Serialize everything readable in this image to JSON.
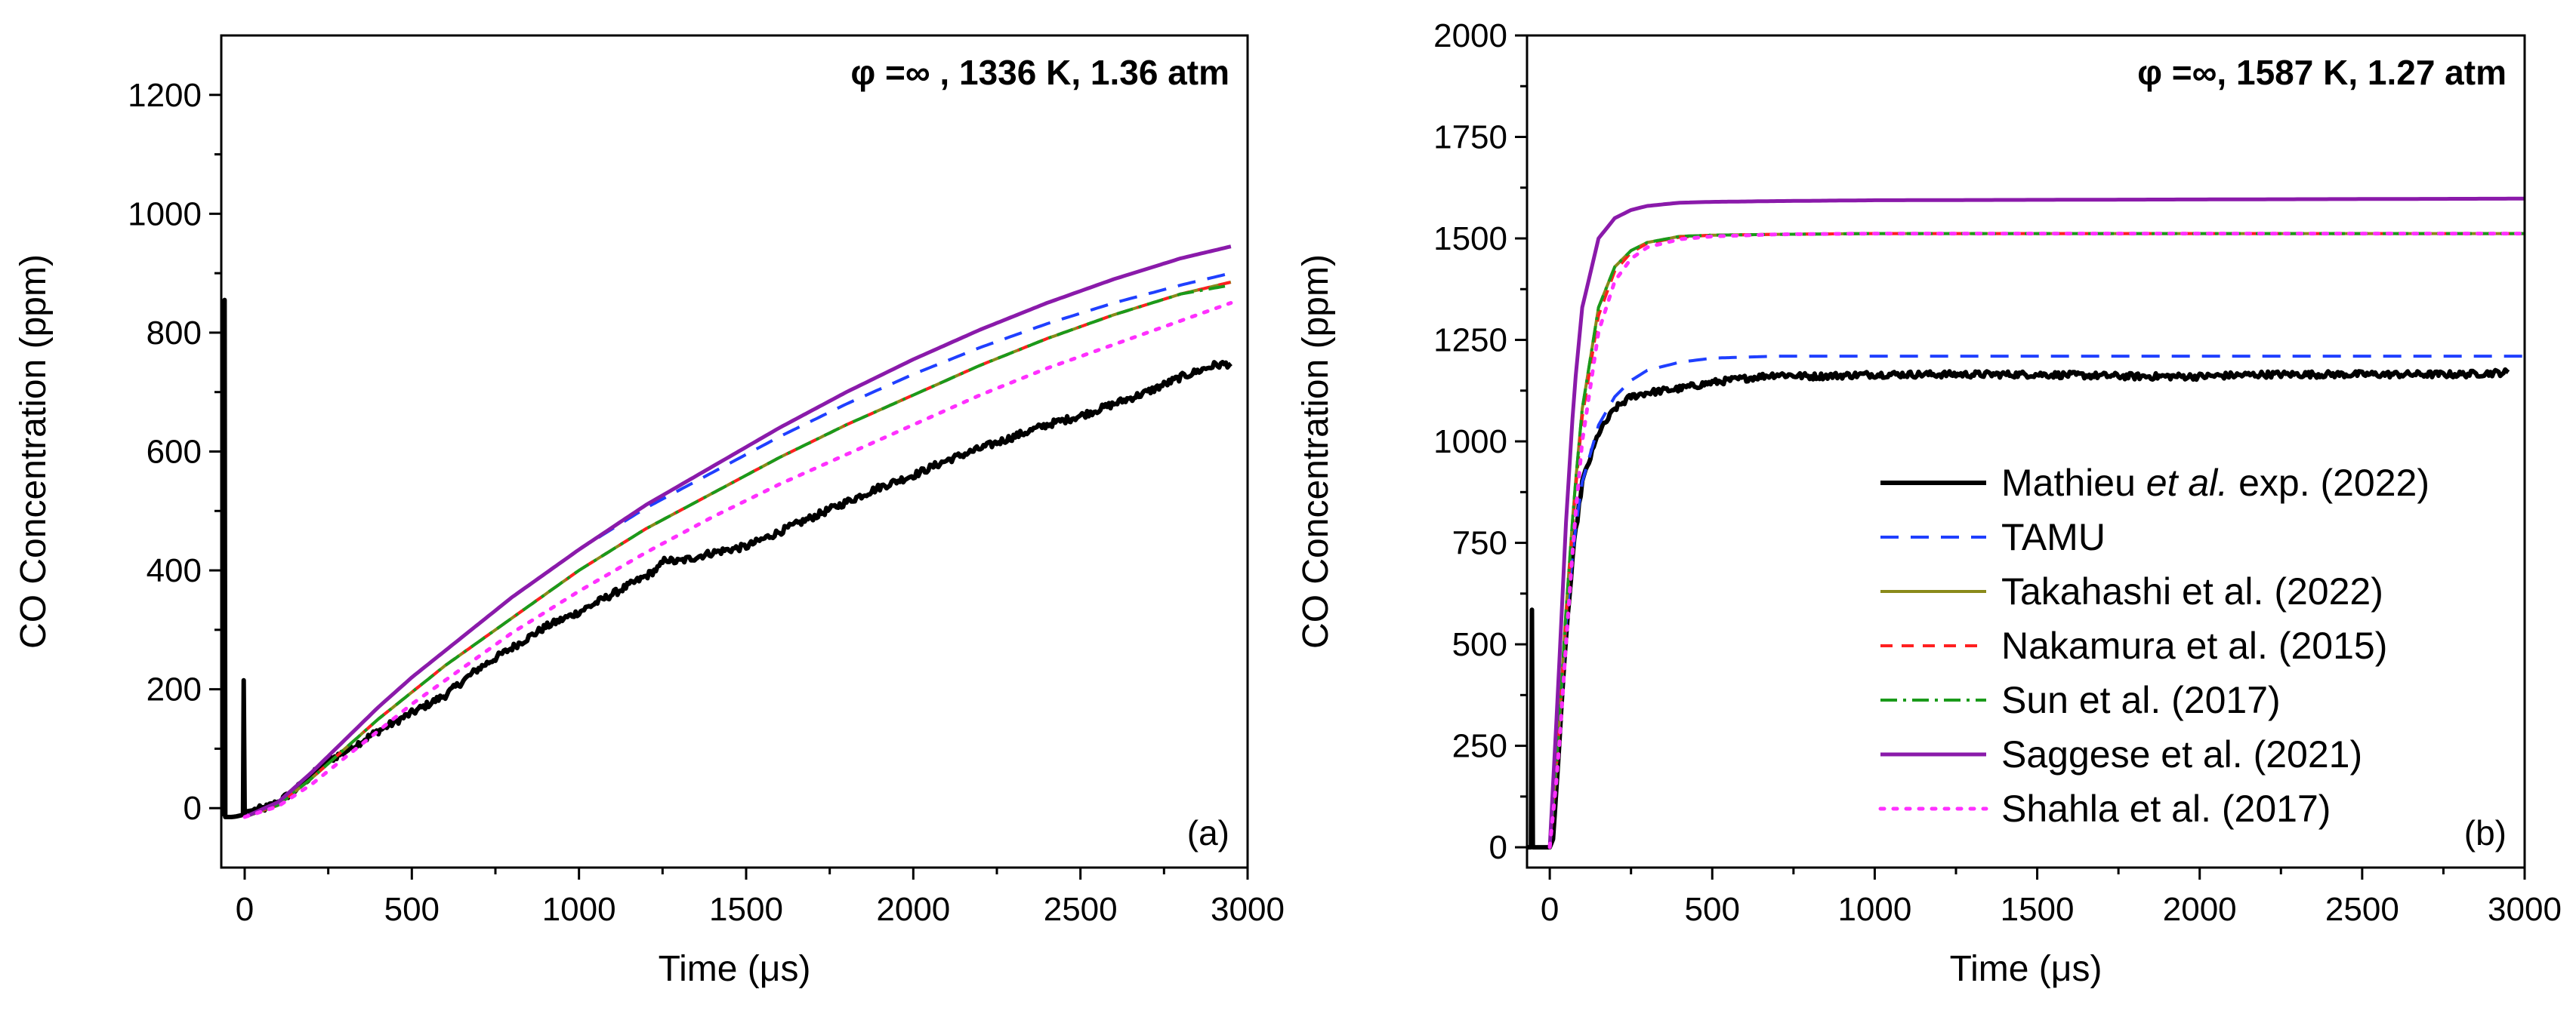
{
  "chart_data": [
    {
      "type": "line",
      "panel_label": "(a)",
      "title": "φ =∞ , 1336 K, 1.36 atm",
      "xlabel_main": "Time (",
      "xlabel_unit": "μs",
      "xlabel_close": ")",
      "ylabel": "CO Concentration (ppm)",
      "xlim": [
        -70,
        3000
      ],
      "ylim": [
        -100,
        1300
      ],
      "xticks": [
        0,
        500,
        1000,
        1500,
        2000,
        2500,
        3000
      ],
      "yticks": [
        0,
        200,
        400,
        600,
        800,
        1000,
        1200
      ],
      "series": [
        {
          "name": "Mathieu et al. exp. (2022)",
          "color": "#000000",
          "dash": "",
          "width": 6,
          "noise": 6,
          "x": [
            -70,
            -62,
            -60,
            -58,
            -55,
            -40,
            -25,
            -10,
            -5,
            -3,
            0,
            3,
            10,
            60,
            100,
            150,
            200,
            250,
            300,
            400,
            500,
            600,
            700,
            800,
            900,
            1000,
            1100,
            1200,
            1240,
            1260,
            1280,
            1300,
            1400,
            1500,
            1600,
            1700,
            1800,
            1900,
            2000,
            2100,
            2200,
            2300,
            2400,
            2500,
            2600,
            2700,
            2800,
            2900,
            2950
          ],
          "y": [
            -10,
            -10,
            855,
            -15,
            -15,
            -15,
            -14,
            -12,
            -10,
            215,
            -10,
            -5,
            -5,
            0,
            10,
            30,
            55,
            80,
            95,
            130,
            160,
            190,
            235,
            270,
            305,
            330,
            360,
            390,
            405,
            420,
            415,
            415,
            430,
            440,
            465,
            490,
            515,
            540,
            560,
            585,
            605,
            625,
            645,
            660,
            680,
            700,
            725,
            745,
            748
          ]
        },
        {
          "name": "TAMU",
          "color": "#1f3fff",
          "dash": "24,16",
          "width": 4,
          "x": [
            0,
            100,
            200,
            300,
            400,
            500,
            600,
            700,
            800,
            900,
            1000,
            1200,
            1400,
            1600,
            1800,
            2000,
            2200,
            2400,
            2600,
            2800,
            2950
          ],
          "y": [
            -15,
            10,
            60,
            115,
            170,
            220,
            265,
            310,
            355,
            395,
            435,
            505,
            565,
            625,
            680,
            730,
            775,
            815,
            850,
            880,
            900
          ]
        },
        {
          "name": "Takahashi et al. (2022)",
          "color": "#8a8a1a",
          "dash": "",
          "width": 4,
          "x": [
            0,
            100,
            200,
            300,
            400,
            500,
            600,
            700,
            800,
            900,
            1000,
            1200,
            1400,
            1600,
            1800,
            2000,
            2200,
            2400,
            2600,
            2800,
            2950
          ],
          "y": [
            -15,
            5,
            50,
            100,
            150,
            195,
            240,
            280,
            320,
            360,
            400,
            470,
            530,
            590,
            645,
            695,
            745,
            790,
            830,
            865,
            885
          ]
        },
        {
          "name": "Nakamura et al. (2015)",
          "color": "#ff2020",
          "dash": "16,12",
          "width": 4,
          "x": [
            0,
            100,
            200,
            300,
            400,
            500,
            600,
            700,
            800,
            900,
            1000,
            1200,
            1400,
            1600,
            1800,
            2000,
            2200,
            2400,
            2600,
            2800,
            2950
          ],
          "y": [
            -15,
            5,
            50,
            100,
            150,
            195,
            240,
            280,
            320,
            360,
            400,
            470,
            530,
            590,
            645,
            695,
            745,
            790,
            830,
            865,
            885
          ]
        },
        {
          "name": "Sun et al. (2017)",
          "color": "#1a9a1a",
          "dash": "22,8,4,8",
          "width": 4,
          "x": [
            0,
            100,
            200,
            300,
            400,
            500,
            600,
            700,
            800,
            900,
            1000,
            1200,
            1400,
            1600,
            1800,
            2000,
            2200,
            2400,
            2600,
            2800,
            2950
          ],
          "y": [
            -15,
            5,
            50,
            100,
            150,
            195,
            240,
            280,
            320,
            360,
            400,
            470,
            530,
            590,
            645,
            695,
            745,
            790,
            830,
            865,
            880
          ]
        },
        {
          "name": "Saggese et al. (2021)",
          "color": "#8a1aaa",
          "dash": "",
          "width": 5,
          "x": [
            0,
            100,
            200,
            300,
            400,
            500,
            600,
            700,
            800,
            900,
            1000,
            1200,
            1400,
            1600,
            1800,
            2000,
            2200,
            2400,
            2600,
            2800,
            2950
          ],
          "y": [
            -15,
            10,
            60,
            115,
            170,
            220,
            265,
            310,
            355,
            395,
            435,
            510,
            575,
            640,
            700,
            755,
            805,
            850,
            890,
            925,
            945
          ]
        },
        {
          "name": "Shahla et al. (2017)",
          "color": "#ff30ff",
          "dash": "5,12",
          "width": 5,
          "x": [
            0,
            100,
            200,
            300,
            400,
            500,
            600,
            700,
            800,
            900,
            1000,
            1200,
            1400,
            1600,
            1800,
            2000,
            2200,
            2400,
            2600,
            2800,
            2950
          ],
          "y": [
            -15,
            3,
            40,
            85,
            130,
            175,
            215,
            255,
            295,
            330,
            365,
            430,
            490,
            545,
            595,
            645,
            695,
            740,
            780,
            820,
            850
          ]
        }
      ]
    },
    {
      "type": "line",
      "panel_label": "(b)",
      "title": "φ =∞, 1587 K, 1.27 atm",
      "xlabel_main": "Time (",
      "xlabel_unit": "μs",
      "xlabel_close": ")",
      "ylabel": "CO Concentration (ppm)",
      "xlim": [
        -70,
        3000
      ],
      "ylim": [
        -50,
        2000
      ],
      "xticks": [
        0,
        500,
        1000,
        1500,
        2000,
        2500,
        3000
      ],
      "yticks": [
        0,
        250,
        500,
        750,
        1000,
        1250,
        1500,
        1750,
        2000
      ],
      "legend_position": "center-right",
      "series": [
        {
          "name": "Mathieu et al. exp. (2022)",
          "name_parts": [
            "Mathieu ",
            "et al.",
            " exp. (2022)"
          ],
          "color": "#000000",
          "dash": "",
          "width": 6,
          "noise": 8,
          "x": [
            -70,
            -58,
            -55,
            -52,
            -40,
            -10,
            0,
            10,
            25,
            50,
            75,
            100,
            150,
            200,
            250,
            300,
            400,
            500,
            600,
            700,
            800,
            1000,
            1200,
            1500,
            1800,
            2000,
            2200,
            2500,
            2800,
            2950
          ],
          "y": [
            0,
            0,
            585,
            0,
            0,
            0,
            0,
            20,
            200,
            520,
            750,
            900,
            1020,
            1080,
            1110,
            1120,
            1130,
            1145,
            1155,
            1165,
            1160,
            1165,
            1165,
            1165,
            1160,
            1160,
            1165,
            1165,
            1165,
            1170
          ]
        },
        {
          "name": "TAMU",
          "color": "#1f3fff",
          "dash": "24,16",
          "width": 4,
          "x": [
            0,
            25,
            50,
            75,
            100,
            150,
            200,
            250,
            300,
            400,
            500,
            700,
            1000,
            1500,
            2000,
            2500,
            3000
          ],
          "y": [
            0,
            250,
            550,
            760,
            900,
            1040,
            1110,
            1150,
            1175,
            1195,
            1205,
            1210,
            1210,
            1210,
            1210,
            1210,
            1210
          ]
        },
        {
          "name": "Takahashi et al. (2022)",
          "color": "#8a8a1a",
          "dash": "",
          "width": 4,
          "x": [
            0,
            25,
            50,
            75,
            100,
            150,
            200,
            250,
            300,
            400,
            500,
            700,
            1000,
            1500,
            2000,
            2500,
            3000
          ],
          "y": [
            0,
            250,
            580,
            860,
            1080,
            1330,
            1430,
            1470,
            1490,
            1505,
            1508,
            1510,
            1512,
            1512,
            1512,
            1512,
            1512
          ]
        },
        {
          "name": "Nakamura et al. (2015)",
          "color": "#ff2020",
          "dash": "16,12",
          "width": 4,
          "x": [
            0,
            25,
            50,
            75,
            100,
            150,
            200,
            250,
            300,
            400,
            500,
            700,
            1000,
            1500,
            2000,
            2500,
            3000
          ],
          "y": [
            0,
            240,
            560,
            840,
            1060,
            1310,
            1420,
            1465,
            1488,
            1503,
            1508,
            1510,
            1512,
            1512,
            1512,
            1512,
            1512
          ]
        },
        {
          "name": "Sun et al. (2017)",
          "color": "#1a9a1a",
          "dash": "22,8,4,8",
          "width": 4,
          "x": [
            0,
            25,
            50,
            75,
            100,
            150,
            200,
            250,
            300,
            400,
            500,
            700,
            1000,
            1500,
            2000,
            2500,
            3000
          ],
          "y": [
            0,
            250,
            580,
            860,
            1080,
            1330,
            1430,
            1470,
            1490,
            1505,
            1508,
            1510,
            1512,
            1512,
            1512,
            1512,
            1512
          ]
        },
        {
          "name": "Saggese et al. (2021)",
          "color": "#8a1aaa",
          "dash": "",
          "width": 5,
          "x": [
            0,
            25,
            50,
            75,
            100,
            150,
            200,
            250,
            300,
            400,
            500,
            700,
            1000,
            1500,
            2000,
            2500,
            3000
          ],
          "y": [
            0,
            380,
            800,
            1120,
            1330,
            1500,
            1550,
            1570,
            1580,
            1588,
            1590,
            1592,
            1594,
            1595,
            1596,
            1597,
            1598
          ]
        },
        {
          "name": "Shahla et al. (2017)",
          "color": "#ff30ff",
          "dash": "5,12",
          "width": 5,
          "x": [
            0,
            25,
            50,
            75,
            100,
            150,
            200,
            250,
            300,
            400,
            500,
            700,
            1000,
            1500,
            2000,
            2500,
            3000
          ],
          "y": [
            0,
            200,
            500,
            780,
            1000,
            1270,
            1395,
            1450,
            1478,
            1498,
            1505,
            1510,
            1512,
            1512,
            1512,
            1512,
            1512
          ]
        }
      ]
    }
  ]
}
